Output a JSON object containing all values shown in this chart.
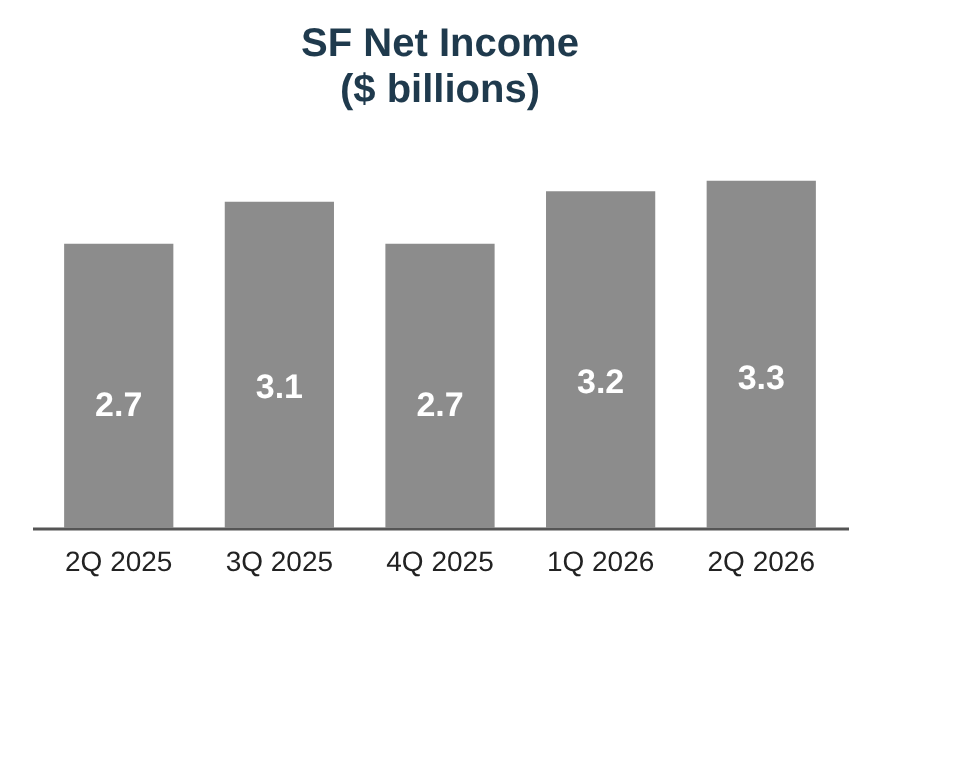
{
  "chart_data": {
    "type": "bar",
    "title": "SF Net Income",
    "subtitle": "($ billions)",
    "categories": [
      "2Q 2025",
      "3Q 2025",
      "4Q 2025",
      "1Q 2026",
      "2Q 2026"
    ],
    "values": [
      2.7,
      3.1,
      2.7,
      3.2,
      3.3
    ],
    "color": "#8c8c8c",
    "data_labels": true
  }
}
